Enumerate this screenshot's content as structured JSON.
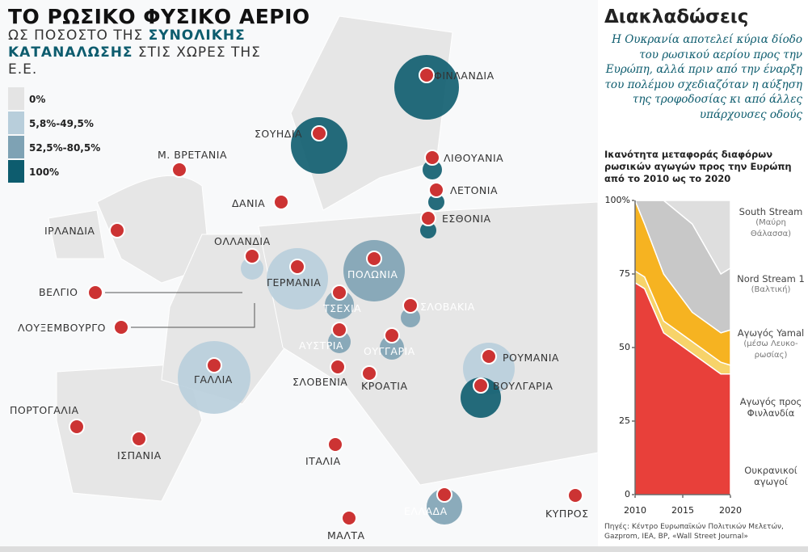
{
  "header": {
    "title": "ΤΟ ΡΩΣΙΚΟ ΦΥΣΙΚΟ ΑΕΡΙΟ",
    "subtitle_a": "ΩΣ ΠΟΣΟΣΤΟ ΤΗΣ ",
    "subtitle_b": "ΣΥΝΟΛΙΚΗΣ ΚΑΤΑΝΑΛΩΣΗΣ",
    "subtitle_c": " ΣΤΙΣ ΧΩΡΕΣ ΤΗΣ Ε.Ε."
  },
  "legend": [
    {
      "label": "0%",
      "color": "#e4e4e4"
    },
    {
      "label": "5,8%-49,5%",
      "color": "#b8cedb"
    },
    {
      "label": "52,5%-80,5%",
      "color": "#7ea2b4"
    },
    {
      "label": "100%",
      "color": "#0d5c6e"
    }
  ],
  "countries": [
    {
      "name": "ΦΙΝΛΑΝΔΙΑ",
      "shade": 3
    },
    {
      "name": "ΣΟΥΗΔΙΑ",
      "shade": 3
    },
    {
      "name": "ΛΙΘΟΥΑΝΙΑ",
      "shade": 3
    },
    {
      "name": "ΛΕΤΟΝΙΑ",
      "shade": 3
    },
    {
      "name": "ΕΣΘΟΝΙΑ",
      "shade": 3
    },
    {
      "name": "Μ. ΒΡΕΤΑΝΙΑ",
      "shade": 0
    },
    {
      "name": "ΔΑΝΙΑ",
      "shade": 0
    },
    {
      "name": "ΙΡΛΑΝΔΙΑ",
      "shade": 0
    },
    {
      "name": "ΟΛΛΑΝΔΙΑ",
      "shade": 1
    },
    {
      "name": "ΓΕΡΜΑΝΙΑ",
      "shade": 1
    },
    {
      "name": "ΠΟΛΩΝΙΑ",
      "shade": 2
    },
    {
      "name": "ΒΕΛΓΙΟ",
      "shade": 1
    },
    {
      "name": "ΛΟΥΞΕΜΒΟΥΡΓΟ",
      "shade": 1
    },
    {
      "name": "ΤΣΕΧΙΑ",
      "shade": 2
    },
    {
      "name": "ΣΛΟΒΑΚΙΑ",
      "shade": 2
    },
    {
      "name": "ΑΥΣΤΡΙΑ",
      "shade": 2
    },
    {
      "name": "ΟΥΓΓΑΡΙΑ",
      "shade": 2
    },
    {
      "name": "ΡΟΥΜΑΝΙΑ",
      "shade": 1
    },
    {
      "name": "ΓΑΛΛΙΑ",
      "shade": 1
    },
    {
      "name": "ΣΛΟΒΕΝΙΑ",
      "shade": 1
    },
    {
      "name": "ΚΡΟΑΤΙΑ",
      "shade": 1
    },
    {
      "name": "ΒΟΥΛΓΑΡΙΑ",
      "shade": 3
    },
    {
      "name": "ΠΟΡΤΟΓΑΛΙΑ",
      "shade": 0
    },
    {
      "name": "ΙΣΠΑΝΙΑ",
      "shade": 0
    },
    {
      "name": "ΙΤΑΛΙΑ",
      "shade": 1
    },
    {
      "name": "ΕΛΛΑΔΑ",
      "shade": 2
    },
    {
      "name": "ΚΥΠΡΟΣ",
      "shade": 0
    },
    {
      "name": "ΜΑΛΤΑ",
      "shade": 0
    }
  ],
  "panel": {
    "title": "Διακλαδώσεις",
    "intro": "Η Ουκρανία αποτελεί κύρια δίοδο του ρωσικού αερίου προς την Ευρώπη, αλλά πριν από την έναρξη του πολέμου σχεδιαζόταν η αύξηση της τροφοδοσίας κι από άλλες υπάρχουσες οδούς",
    "source": "Πηγές: Κέντρο Ευρωπαϊκών Πολιτικών Μελετών, Gazprom, IEA, BP, «Wall Street Journal»"
  },
  "chart_data": {
    "type": "stacked-area",
    "title": "Ικανότητα μεταφοράς διαφόρων ρωσικών αγωγών προς την Ευρώπη από το 2010 ως το 2020",
    "x": [
      2010,
      2011,
      2013,
      2016,
      2019,
      2020
    ],
    "xlim": [
      2010,
      2020
    ],
    "xticks": [
      2010,
      2015,
      2020
    ],
    "ylim": [
      0,
      100
    ],
    "yticks": [
      0,
      25,
      50,
      75,
      {
        "value": 100,
        "label": "100%"
      }
    ],
    "series": [
      {
        "name": "Ουκρανικοί αγωγοί",
        "color": "#e8403a",
        "values": [
          72,
          70,
          55,
          48,
          41,
          41
        ]
      },
      {
        "name": "Αγωγός προς Φινλανδία",
        "color": "#f7d36a",
        "values": [
          4,
          4,
          4,
          4,
          4,
          3
        ]
      },
      {
        "name": "Αγωγός Yamal",
        "note": "(μέσω Λευκο-ρωσίας)",
        "color": "#f6b321",
        "values": [
          24,
          18,
          16,
          10,
          10,
          12
        ]
      },
      {
        "name": "Nord Stream 1",
        "note": "(Βαλτική)",
        "color": "#c8c8c8",
        "values": [
          0,
          8,
          25,
          30,
          20,
          21
        ]
      },
      {
        "name": "South Stream",
        "note": "(Μαύρη Θάλασσα)",
        "color": "#dedede",
        "values": [
          0,
          0,
          0,
          8,
          25,
          23
        ]
      }
    ]
  }
}
